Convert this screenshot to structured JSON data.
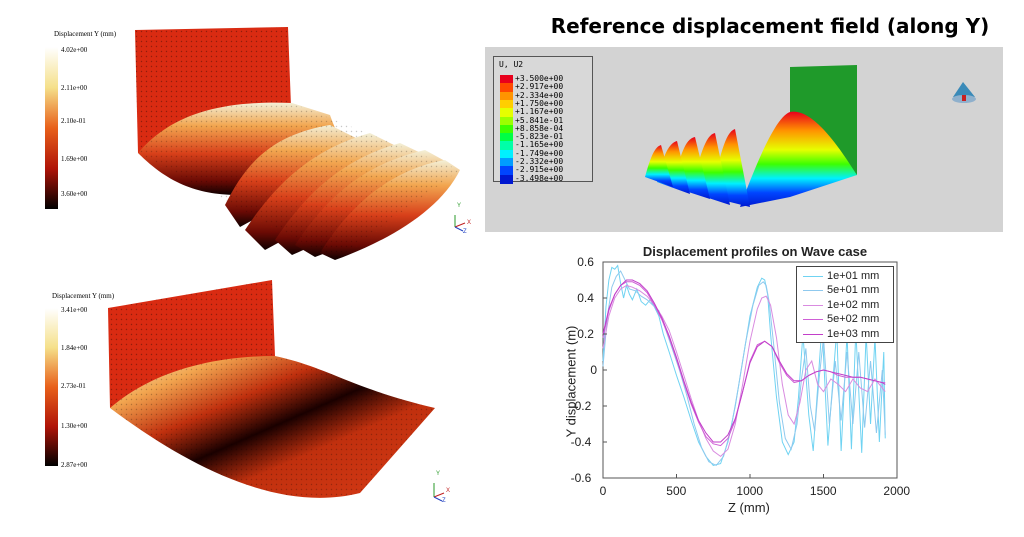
{
  "title": "Reference displacement field (along Y)",
  "top_left_colorbar": {
    "title": "Displacement Y (mm)",
    "ticks": [
      "4.02e+00",
      "2.11e+00",
      "2.10e-01",
      "1.69e+00",
      "3.60e+00"
    ]
  },
  "bottom_left_colorbar": {
    "title": "Displacement Y (mm)",
    "ticks": [
      "3.41e+00",
      "1.84e+00",
      "2.73e-01",
      "1.30e+00",
      "2.87e+00"
    ]
  },
  "triad_labels": {
    "y": "Y",
    "x": "X",
    "z": "Z"
  },
  "abaqus_legend": {
    "title": "U, U2",
    "values": [
      "+3.500e+00",
      "+2.917e+00",
      "+2.334e+00",
      "+1.750e+00",
      "+1.167e+00",
      "+5.841e-01",
      "+8.858e-04",
      "-5.823e-01",
      "-1.165e+00",
      "-1.749e+00",
      "-2.332e+00",
      "-2.915e+00",
      "-3.498e+00"
    ],
    "colors": [
      "#e8001c",
      "#ff4a00",
      "#ff9400",
      "#ffce00",
      "#e6ff00",
      "#9cff00",
      "#3dff00",
      "#00ff45",
      "#00ffa8",
      "#00f0ff",
      "#009cff",
      "#0045ff",
      "#0018d0"
    ]
  },
  "chart_data": {
    "type": "line",
    "title": "Displacement profiles on Wave case",
    "xlabel": "Z (mm)",
    "ylabel": "Y displacement (m)",
    "xlim": [
      0,
      2000
    ],
    "ylim": [
      -0.6,
      0.6
    ],
    "xticks": [
      0,
      500,
      1000,
      1500,
      2000
    ],
    "yticks": [
      -0.6,
      -0.4,
      -0.2,
      0,
      0.2,
      0.4,
      0.6
    ],
    "grid": false,
    "legend_position": "top-right",
    "series": [
      {
        "name": "1e+01 mm",
        "color": "#6fd3f2",
        "x": [
          0,
          20,
          40,
          60,
          80,
          100,
          120,
          140,
          160,
          180,
          200,
          230,
          260,
          290,
          320,
          350,
          380,
          410,
          450,
          500,
          550,
          600,
          650,
          700,
          750,
          800,
          850,
          900,
          950,
          1000,
          1050,
          1080,
          1100,
          1120,
          1140,
          1180,
          1220,
          1260,
          1300,
          1330,
          1360,
          1400,
          1430,
          1460,
          1490,
          1530,
          1560,
          1590,
          1620,
          1660,
          1690,
          1720,
          1760,
          1790,
          1820,
          1850,
          1880,
          1910,
          1920
        ],
        "y": [
          0.05,
          0.35,
          0.5,
          0.57,
          0.56,
          0.58,
          0.48,
          0.4,
          0.47,
          0.42,
          0.39,
          0.45,
          0.38,
          0.36,
          0.39,
          0.35,
          0.3,
          0.2,
          0.1,
          -0.03,
          -0.15,
          -0.28,
          -0.4,
          -0.48,
          -0.53,
          -0.52,
          -0.4,
          -0.2,
          0.05,
          0.3,
          0.46,
          0.51,
          0.5,
          0.42,
          0.2,
          -0.15,
          -0.4,
          -0.47,
          -0.4,
          -0.15,
          0.2,
          -0.25,
          -0.45,
          -0.1,
          0.25,
          -0.42,
          -0.1,
          0.22,
          -0.45,
          0.2,
          -0.44,
          0.22,
          -0.46,
          0.2,
          -0.3,
          0.18,
          -0.4,
          0.1,
          -0.38
        ]
      },
      {
        "name": "5e+01 mm",
        "color": "#8fc9ee",
        "x": [
          0,
          30,
          60,
          90,
          120,
          150,
          180,
          220,
          260,
          300,
          340,
          380,
          420,
          470,
          520,
          570,
          620,
          670,
          720,
          770,
          820,
          870,
          920,
          970,
          1020,
          1060,
          1090,
          1110,
          1130,
          1160,
          1200,
          1240,
          1280,
          1320,
          1350,
          1380,
          1410,
          1440,
          1470,
          1500,
          1540,
          1580,
          1620,
          1660,
          1700,
          1740,
          1780,
          1820,
          1860,
          1900,
          1920
        ],
        "y": [
          0.02,
          0.3,
          0.46,
          0.52,
          0.55,
          0.5,
          0.45,
          0.44,
          0.41,
          0.39,
          0.36,
          0.33,
          0.24,
          0.12,
          0.0,
          -0.14,
          -0.3,
          -0.43,
          -0.51,
          -0.53,
          -0.48,
          -0.33,
          -0.1,
          0.15,
          0.36,
          0.47,
          0.49,
          0.47,
          0.38,
          0.15,
          -0.18,
          -0.38,
          -0.44,
          -0.3,
          -0.05,
          0.12,
          -0.2,
          -0.34,
          -0.05,
          0.18,
          -0.3,
          0.05,
          -0.28,
          0.1,
          -0.3,
          0.1,
          -0.32,
          0.05,
          -0.35,
          0.0,
          -0.36
        ]
      },
      {
        "name": "1e+02 mm",
        "color": "#d98be0",
        "x": [
          0,
          40,
          80,
          120,
          160,
          200,
          250,
          300,
          350,
          400,
          450,
          500,
          550,
          600,
          650,
          700,
          750,
          800,
          850,
          900,
          950,
          1000,
          1050,
          1080,
          1110,
          1140,
          1180,
          1220,
          1260,
          1300,
          1340,
          1380,
          1420,
          1460,
          1500,
          1550,
          1600,
          1650,
          1700,
          1750,
          1800,
          1850,
          1900,
          1920
        ],
        "y": [
          0.12,
          0.3,
          0.4,
          0.45,
          0.47,
          0.46,
          0.44,
          0.41,
          0.36,
          0.3,
          0.22,
          0.1,
          -0.03,
          -0.16,
          -0.28,
          -0.38,
          -0.45,
          -0.48,
          -0.44,
          -0.3,
          -0.08,
          0.16,
          0.34,
          0.4,
          0.41,
          0.36,
          0.18,
          -0.08,
          -0.25,
          -0.3,
          -0.18,
          0.0,
          0.05,
          -0.08,
          -0.12,
          -0.05,
          -0.08,
          -0.12,
          -0.05,
          -0.1,
          -0.12,
          -0.05,
          -0.1,
          -0.12
        ]
      },
      {
        "name": "5e+02 mm",
        "color": "#cf5fd6",
        "x": [
          0,
          40,
          80,
          120,
          160,
          200,
          250,
          300,
          350,
          400,
          450,
          500,
          550,
          600,
          650,
          700,
          750,
          800,
          850,
          900,
          950,
          1000,
          1050,
          1100,
          1150,
          1200,
          1250,
          1300,
          1350,
          1400,
          1450,
          1500,
          1550,
          1600,
          1650,
          1700,
          1750,
          1800,
          1850,
          1900,
          1920
        ],
        "y": [
          0.18,
          0.33,
          0.42,
          0.47,
          0.49,
          0.49,
          0.47,
          0.43,
          0.36,
          0.28,
          0.18,
          0.06,
          -0.07,
          -0.19,
          -0.29,
          -0.37,
          -0.41,
          -0.42,
          -0.38,
          -0.28,
          -0.12,
          0.05,
          0.14,
          0.16,
          0.13,
          0.04,
          -0.03,
          -0.07,
          -0.06,
          -0.03,
          -0.01,
          0.0,
          -0.01,
          -0.03,
          -0.04,
          -0.04,
          -0.04,
          -0.05,
          -0.06,
          -0.07,
          -0.07
        ]
      },
      {
        "name": "1e+03 mm",
        "color": "#c23fc9",
        "x": [
          0,
          40,
          80,
          120,
          160,
          200,
          250,
          300,
          350,
          400,
          450,
          500,
          550,
          600,
          650,
          700,
          750,
          800,
          850,
          900,
          950,
          1000,
          1050,
          1100,
          1150,
          1200,
          1250,
          1300,
          1350,
          1400,
          1450,
          1500,
          1550,
          1600,
          1650,
          1700,
          1750,
          1800,
          1850,
          1900,
          1920
        ],
        "y": [
          0.2,
          0.34,
          0.42,
          0.47,
          0.5,
          0.5,
          0.48,
          0.44,
          0.37,
          0.29,
          0.19,
          0.07,
          -0.06,
          -0.18,
          -0.28,
          -0.35,
          -0.4,
          -0.4,
          -0.36,
          -0.27,
          -0.12,
          0.04,
          0.13,
          0.16,
          0.13,
          0.05,
          -0.02,
          -0.06,
          -0.06,
          -0.03,
          -0.01,
          0.0,
          -0.01,
          -0.02,
          -0.03,
          -0.04,
          -0.04,
          -0.05,
          -0.06,
          -0.07,
          -0.08
        ]
      }
    ]
  }
}
